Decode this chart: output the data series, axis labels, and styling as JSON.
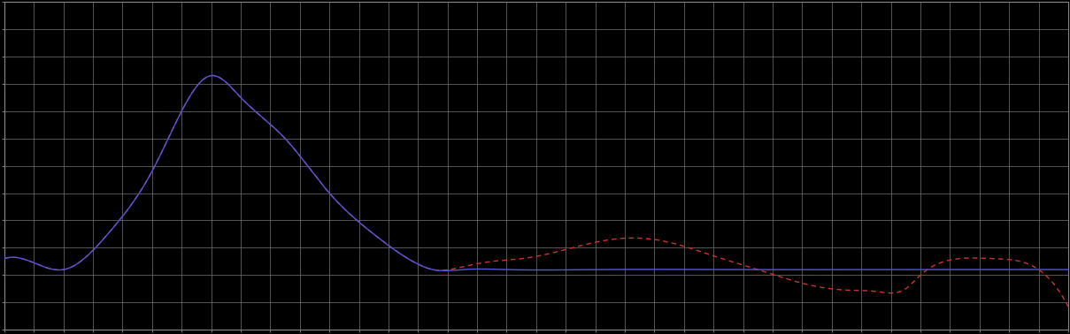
{
  "background_color": "#000000",
  "plot_bg_color": "#000000",
  "grid_color": "#777777",
  "grid_linewidth": 0.5,
  "blue_color": "#5555dd",
  "red_color": "#cc3333",
  "line_width": 1.0,
  "figsize": [
    12.09,
    3.78
  ],
  "dpi": 100,
  "xlim": [
    0,
    36
  ],
  "ylim": [
    0,
    12
  ],
  "n_xcells": 36,
  "n_ycells": 12
}
